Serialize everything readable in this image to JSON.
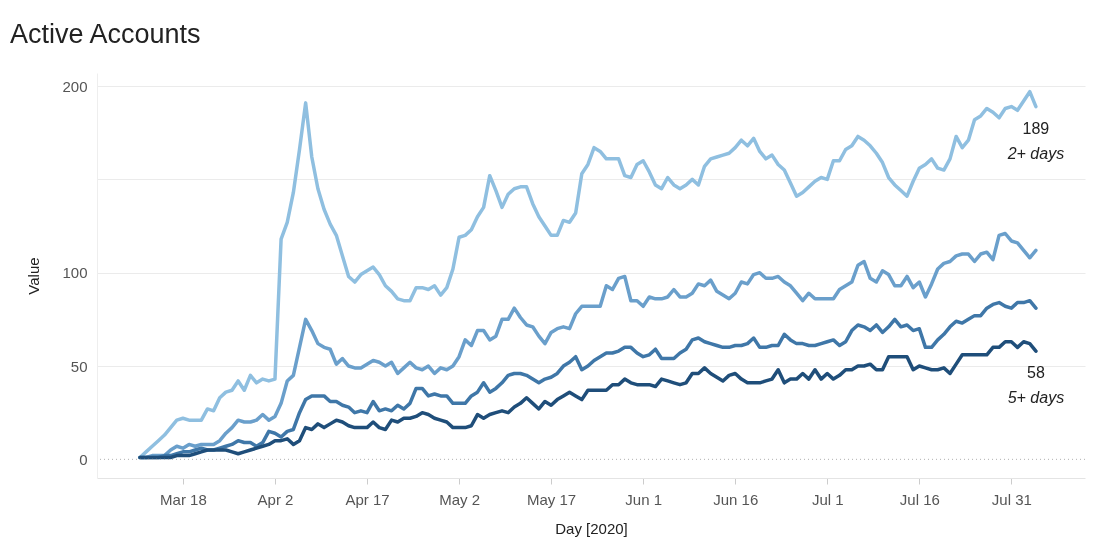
{
  "chart_data": {
    "type": "line",
    "title": "Active Accounts",
    "xlabel": "Day [2020]",
    "ylabel": "Value",
    "x": [
      "2020-03-11",
      "2020-03-12",
      "2020-03-13",
      "2020-03-14",
      "2020-03-15",
      "2020-03-16",
      "2020-03-17",
      "2020-03-18",
      "2020-03-19",
      "2020-03-20",
      "2020-03-21",
      "2020-03-22",
      "2020-03-23",
      "2020-03-24",
      "2020-03-25",
      "2020-03-26",
      "2020-03-27",
      "2020-03-28",
      "2020-03-29",
      "2020-03-30",
      "2020-03-31",
      "2020-04-01",
      "2020-04-02",
      "2020-04-03",
      "2020-04-04",
      "2020-04-05",
      "2020-04-06",
      "2020-04-07",
      "2020-04-08",
      "2020-04-09",
      "2020-04-10",
      "2020-04-11",
      "2020-04-12",
      "2020-04-13",
      "2020-04-14",
      "2020-04-15",
      "2020-04-16",
      "2020-04-17",
      "2020-04-18",
      "2020-04-19",
      "2020-04-20",
      "2020-04-21",
      "2020-04-22",
      "2020-04-23",
      "2020-04-24",
      "2020-04-25",
      "2020-04-26",
      "2020-04-27",
      "2020-04-28",
      "2020-04-29",
      "2020-04-30",
      "2020-05-01",
      "2020-05-02",
      "2020-05-03",
      "2020-05-04",
      "2020-05-05",
      "2020-05-06",
      "2020-05-07",
      "2020-05-08",
      "2020-05-09",
      "2020-05-10",
      "2020-05-11",
      "2020-05-12",
      "2020-05-13",
      "2020-05-14",
      "2020-05-15",
      "2020-05-16",
      "2020-05-17",
      "2020-05-18",
      "2020-05-19",
      "2020-05-20",
      "2020-05-21",
      "2020-05-22",
      "2020-05-23",
      "2020-05-24",
      "2020-05-25",
      "2020-05-26",
      "2020-05-27",
      "2020-05-28",
      "2020-05-29",
      "2020-05-30",
      "2020-05-31",
      "2020-06-01",
      "2020-06-02",
      "2020-06-03",
      "2020-06-04",
      "2020-06-05",
      "2020-06-06",
      "2020-06-07",
      "2020-06-08",
      "2020-06-09",
      "2020-06-10",
      "2020-06-11",
      "2020-06-12",
      "2020-06-13",
      "2020-06-14",
      "2020-06-15",
      "2020-06-16",
      "2020-06-17",
      "2020-06-18",
      "2020-06-19",
      "2020-06-20",
      "2020-06-21",
      "2020-06-22",
      "2020-06-23",
      "2020-06-24",
      "2020-06-25",
      "2020-06-26",
      "2020-06-27",
      "2020-06-28",
      "2020-06-29",
      "2020-06-30",
      "2020-07-01",
      "2020-07-02",
      "2020-07-03",
      "2020-07-04",
      "2020-07-05",
      "2020-07-06",
      "2020-07-07",
      "2020-07-08",
      "2020-07-09",
      "2020-07-10",
      "2020-07-11",
      "2020-07-12",
      "2020-07-13",
      "2020-07-14",
      "2020-07-15",
      "2020-07-16",
      "2020-07-17",
      "2020-07-18",
      "2020-07-19",
      "2020-07-20",
      "2020-07-21",
      "2020-07-22",
      "2020-07-23",
      "2020-07-24",
      "2020-07-25",
      "2020-07-26",
      "2020-07-27",
      "2020-07-28",
      "2020-07-29",
      "2020-07-30",
      "2020-07-31",
      "2020-08-01",
      "2020-08-02",
      "2020-08-03",
      "2020-08-04"
    ],
    "series": [
      {
        "name": "2+ days",
        "color": "#8fbfe0",
        "values": [
          1,
          4,
          7,
          10,
          13,
          17,
          21,
          22,
          21,
          21,
          21,
          27,
          26,
          33,
          36,
          37,
          42,
          37,
          45,
          41,
          43,
          42,
          43,
          118,
          127,
          143,
          166,
          191,
          162,
          145,
          134,
          126,
          120,
          109,
          98,
          95,
          99,
          101,
          103,
          99,
          93,
          90,
          86,
          85,
          85,
          92,
          92,
          91,
          93,
          88,
          92,
          102,
          119,
          120,
          123,
          130,
          135,
          152,
          144,
          135,
          142,
          145,
          146,
          146,
          137,
          130,
          125,
          120,
          120,
          128,
          127,
          132,
          153,
          158,
          167,
          165,
          161,
          161,
          161,
          152,
          151,
          158,
          160,
          154,
          147,
          145,
          151,
          147,
          145,
          147,
          150,
          147,
          157,
          161,
          162,
          163,
          164,
          167,
          171,
          168,
          172,
          165,
          161,
          163,
          158,
          155,
          148,
          141,
          143,
          146,
          149,
          151,
          150,
          160,
          160,
          166,
          168,
          173,
          171,
          168,
          164,
          159,
          151,
          147,
          144,
          141,
          149,
          156,
          158,
          161,
          156,
          155,
          161,
          173,
          167,
          171,
          182,
          184,
          188,
          186,
          183,
          188,
          189,
          187,
          192,
          197,
          189
        ]
      },
      {
        "color": "#6a9fcb",
        "values": [
          1,
          1,
          2,
          2,
          2,
          5,
          7,
          6,
          8,
          7,
          8,
          8,
          8,
          10,
          14,
          17,
          21,
          20,
          20,
          21,
          24,
          21,
          23,
          30,
          42,
          45,
          60,
          75,
          69,
          62,
          60,
          59,
          51,
          54,
          50,
          49,
          49,
          51,
          53,
          52,
          50,
          52,
          46,
          49,
          52,
          49,
          48,
          50,
          46,
          49,
          48,
          50,
          55,
          64,
          61,
          69,
          69,
          64,
          66,
          75,
          75,
          81,
          76,
          72,
          71,
          66,
          62,
          68,
          70,
          71,
          70,
          78,
          82,
          82,
          82,
          82,
          93,
          91,
          97,
          98,
          85,
          85,
          82,
          87,
          86,
          86,
          87,
          91,
          87,
          87,
          89,
          94,
          93,
          96,
          90,
          88,
          86,
          89,
          95,
          94,
          99,
          100,
          97,
          97,
          98,
          95,
          93,
          89,
          85,
          89,
          86,
          86,
          86,
          86,
          91,
          93,
          95,
          104,
          106,
          97,
          95,
          101,
          99,
          93,
          93,
          98,
          92,
          95,
          87,
          94,
          102,
          105,
          106,
          109,
          110,
          110,
          106,
          110,
          111,
          107,
          120,
          121,
          117,
          116,
          112,
          108,
          112
        ]
      },
      {
        "color": "#3f77a8",
        "values": [
          1,
          1,
          1,
          1,
          2,
          2,
          3,
          4,
          4,
          5,
          6,
          5,
          5,
          6,
          7,
          8,
          10,
          9,
          9,
          7,
          9,
          15,
          14,
          12,
          15,
          16,
          25,
          32,
          34,
          34,
          34,
          31,
          31,
          29,
          28,
          25,
          26,
          25,
          31,
          26,
          27,
          26,
          29,
          27,
          30,
          38,
          38,
          34,
          35,
          34,
          34,
          30,
          30,
          30,
          34,
          36,
          41,
          36,
          38,
          41,
          45,
          46,
          46,
          45,
          43,
          41,
          43,
          44,
          46,
          50,
          52,
          55,
          48,
          50,
          53,
          55,
          57,
          57,
          58,
          60,
          60,
          57,
          55,
          56,
          59,
          54,
          54,
          54,
          57,
          59,
          64,
          65,
          63,
          62,
          61,
          60,
          60,
          61,
          61,
          62,
          65,
          60,
          60,
          61,
          61,
          67,
          64,
          62,
          62,
          61,
          61,
          62,
          63,
          64,
          61,
          63,
          69,
          72,
          71,
          69,
          72,
          68,
          71,
          75,
          71,
          72,
          69,
          70,
          60,
          60,
          64,
          67,
          71,
          74,
          73,
          75,
          77,
          77,
          81,
          83,
          84,
          82,
          81,
          84,
          84,
          85,
          81
        ]
      },
      {
        "name": "5+ days",
        "color": "#1f4e7a",
        "values": [
          1,
          1,
          1,
          1,
          1,
          1,
          2,
          2,
          2,
          3,
          4,
          5,
          5,
          5,
          5,
          4,
          3,
          4,
          5,
          6,
          7,
          8,
          10,
          10,
          11,
          8,
          10,
          17,
          16,
          19,
          17,
          19,
          21,
          20,
          18,
          17,
          17,
          17,
          20,
          17,
          16,
          21,
          20,
          22,
          22,
          23,
          25,
          24,
          22,
          21,
          20,
          17,
          17,
          17,
          18,
          24,
          22,
          24,
          25,
          26,
          25,
          28,
          30,
          33,
          30,
          27,
          31,
          29,
          32,
          34,
          36,
          34,
          32,
          37,
          37,
          37,
          37,
          40,
          40,
          43,
          41,
          40,
          40,
          40,
          39,
          43,
          42,
          41,
          40,
          41,
          46,
          46,
          49,
          46,
          44,
          42,
          45,
          46,
          43,
          41,
          41,
          41,
          42,
          43,
          48,
          41,
          43,
          43,
          46,
          43,
          48,
          43,
          46,
          43,
          45,
          48,
          48,
          50,
          50,
          51,
          48,
          48,
          55,
          55,
          55,
          55,
          48,
          50,
          49,
          48,
          48,
          49,
          46,
          51,
          56,
          56,
          56,
          56,
          56,
          60,
          60,
          63,
          63,
          60,
          63,
          62,
          58
        ]
      }
    ],
    "annotations": [
      {
        "text": "189",
        "x": "2020-08-04",
        "y": 189
      },
      {
        "text": "58",
        "x": "2020-08-04",
        "y": 58
      }
    ],
    "xlim": [
      "2020-03-04",
      "2020-08-12"
    ],
    "xticks": [
      {
        "value": "2020-03-18",
        "label": "Mar 18"
      },
      {
        "value": "2020-04-02",
        "label": "Apr 2"
      },
      {
        "value": "2020-04-17",
        "label": "Apr 17"
      },
      {
        "value": "2020-05-02",
        "label": "May 2"
      },
      {
        "value": "2020-05-17",
        "label": "May 17"
      },
      {
        "value": "2020-06-01",
        "label": "Jun 1"
      },
      {
        "value": "2020-06-16",
        "label": "Jun 16"
      },
      {
        "value": "2020-07-01",
        "label": "Jul 1"
      },
      {
        "value": "2020-07-16",
        "label": "Jul 16"
      },
      {
        "value": "2020-07-31",
        "label": "Jul 31"
      }
    ],
    "ylim": [
      -10,
      207
    ],
    "yticks": [
      0,
      50,
      100,
      {
        "value": 150,
        "label": null
      },
      200
    ],
    "ref_lines": [
      {
        "axis": "y",
        "value": 0,
        "line_style": "dotted",
        "color": "#b0b0b0"
      }
    ],
    "grid": "y",
    "line_style": "solid"
  }
}
